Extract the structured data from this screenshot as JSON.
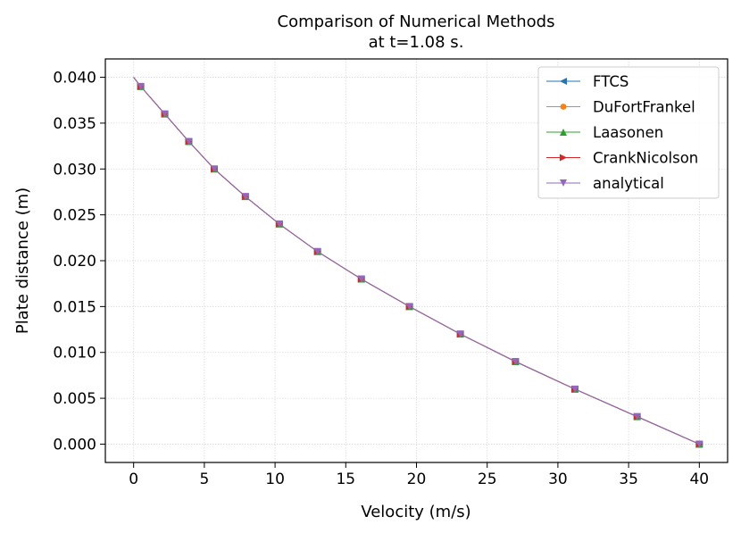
{
  "chart_data": {
    "type": "line",
    "title_lines": [
      "Comparison of Numerical Methods",
      "at t=1.08 s."
    ],
    "xlabel": "Velocity (m/s)",
    "ylabel": "Plate distance (m)",
    "xlim": [
      -2,
      42
    ],
    "ylim": [
      -0.002,
      0.042
    ],
    "xticks": [
      0,
      5,
      10,
      15,
      20,
      25,
      30,
      35,
      40
    ],
    "yticks": [
      0.0,
      0.005,
      0.01,
      0.015,
      0.02,
      0.025,
      0.03,
      0.035,
      0.04
    ],
    "xtick_labels": [
      "0",
      "5",
      "10",
      "15",
      "20",
      "25",
      "30",
      "35",
      "40"
    ],
    "ytick_labels": [
      "0.000",
      "0.005",
      "0.010",
      "0.015",
      "0.020",
      "0.025",
      "0.030",
      "0.035",
      "0.040"
    ],
    "grid": true,
    "legend_position": "top-right",
    "y": [
      0.04,
      0.039,
      0.036,
      0.033,
      0.03,
      0.027,
      0.024,
      0.021,
      0.018,
      0.015,
      0.012,
      0.009,
      0.006,
      0.003,
      0.0
    ],
    "series": [
      {
        "name": "FTCS",
        "color": "#1f77b4",
        "marker": "triangle-left",
        "x": [
          0.0,
          0.5,
          2.2,
          3.9,
          5.7,
          7.9,
          10.3,
          13.0,
          16.1,
          19.5,
          23.1,
          27.0,
          31.2,
          35.6,
          40.0
        ]
      },
      {
        "name": "DuFortFrankel",
        "color": "#ff7f0e",
        "marker": "circle",
        "x": [
          0.0,
          0.5,
          2.2,
          3.9,
          5.7,
          7.9,
          10.3,
          13.0,
          16.1,
          19.5,
          23.1,
          27.0,
          31.2,
          35.6,
          40.0
        ]
      },
      {
        "name": "Laasonen",
        "color": "#2ca02c",
        "marker": "triangle-up",
        "x": [
          0.0,
          0.5,
          2.2,
          3.9,
          5.7,
          7.9,
          10.3,
          13.0,
          16.1,
          19.5,
          23.1,
          27.0,
          31.2,
          35.6,
          40.0
        ]
      },
      {
        "name": "CrankNicolson",
        "color": "#d62728",
        "marker": "triangle-right",
        "x": [
          0.0,
          0.5,
          2.2,
          3.9,
          5.7,
          7.9,
          10.3,
          13.0,
          16.1,
          19.5,
          23.1,
          27.0,
          31.2,
          35.6,
          40.0
        ]
      },
      {
        "name": "analytical",
        "color": "#9467bd",
        "marker": "triangle-down",
        "x": [
          0.0,
          0.5,
          2.2,
          3.9,
          5.7,
          7.9,
          10.3,
          13.0,
          16.1,
          19.5,
          23.1,
          27.0,
          31.2,
          35.6,
          40.0
        ]
      }
    ]
  }
}
